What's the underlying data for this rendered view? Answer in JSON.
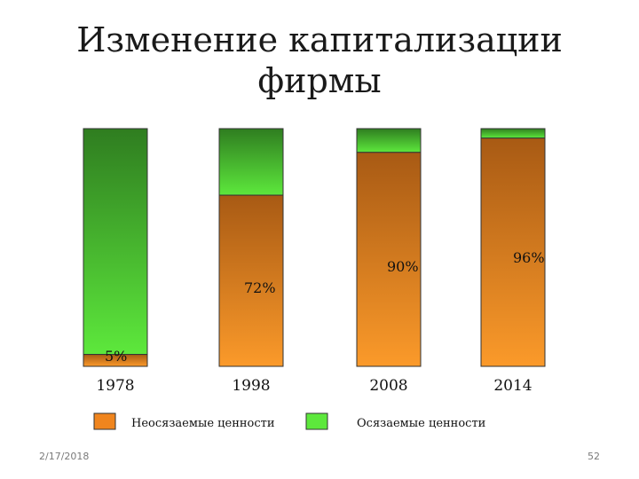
{
  "title": "Изменение капитализации фирмы",
  "footer": {
    "date": "2/17/2018",
    "page_number": "52"
  },
  "colors": {
    "intangible": "#f0851e",
    "tangible": "#5de83c",
    "tangible_dark": "#2f7d20",
    "intangible_dark": "#a85a14"
  },
  "chart_data": {
    "type": "bar",
    "stacked": true,
    "percent": true,
    "categories": [
      "1978",
      "1998",
      "2008",
      "2014"
    ],
    "series": [
      {
        "name": "Неосязаемые ценности",
        "values": [
          5,
          72,
          90,
          96
        ],
        "data_labels": [
          "5%",
          "72%",
          "90%",
          "96%"
        ]
      },
      {
        "name": "Осязаемые ценности",
        "values": [
          95,
          28,
          10,
          4
        ]
      }
    ],
    "ylim": [
      0,
      100
    ],
    "legend_position": "bottom",
    "grid": false
  }
}
